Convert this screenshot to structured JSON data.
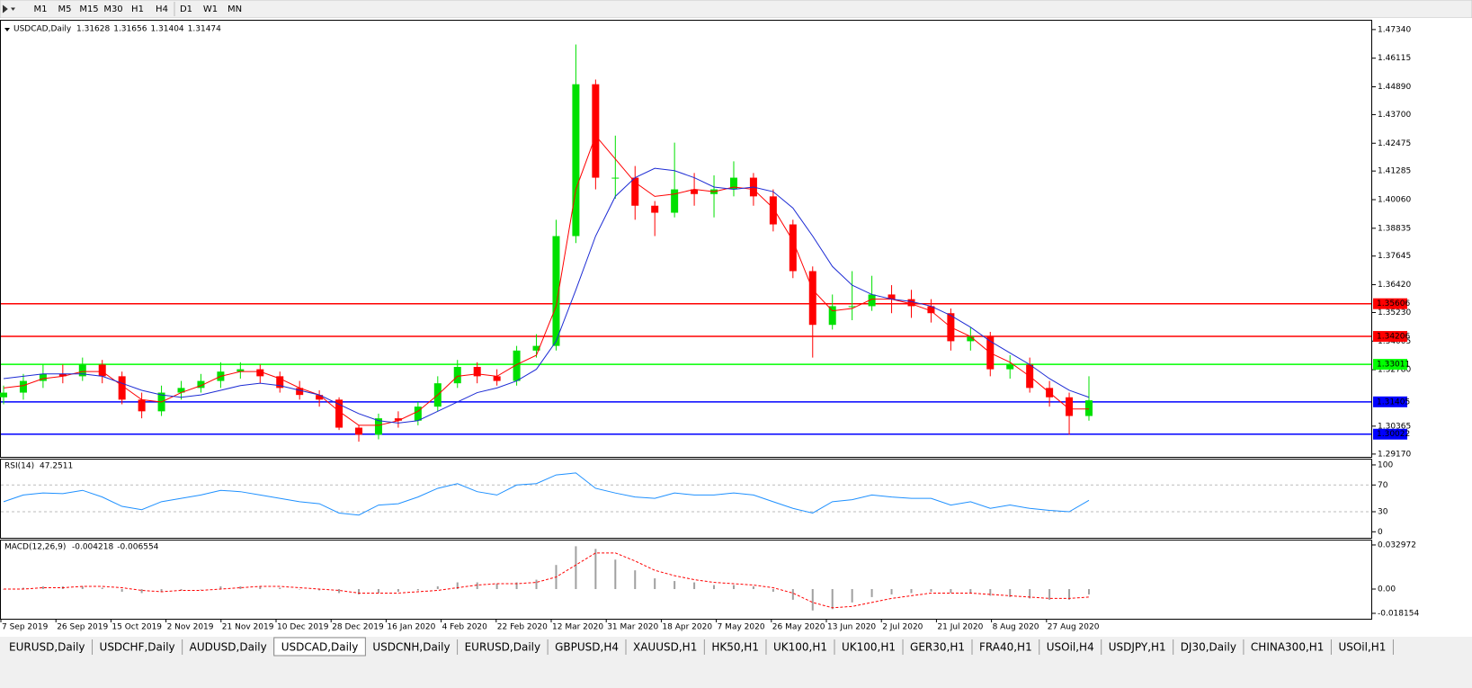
{
  "timeframes": [
    "M1",
    "M5",
    "M15",
    "M30",
    "H1",
    "H4",
    "D1",
    "W1",
    "MN"
  ],
  "tabs": [
    "EURUSD,Daily",
    "USDCHF,Daily",
    "AUDUSD,Daily",
    "USDCAD,Daily",
    "USDCNH,Daily",
    "EURUSD,Daily",
    "GBPUSD,H4",
    "XAUUSD,H1",
    "HK50,H1",
    "UK100,H1",
    "UK100,H1",
    "GER30,H1",
    "FRA40,H1",
    "USOil,H4",
    "USDJPY,H1",
    "DJ30,Daily",
    "CHINA300,H1",
    "USOil,H1"
  ],
  "active_tab": 3,
  "chart_data": [
    {
      "type": "candlestick",
      "title": "USDCAD,Daily",
      "header_values": [
        1.31628,
        1.31656,
        1.31404,
        1.31474
      ],
      "x_labels": [
        "7 Sep 2019",
        "26 Sep 2019",
        "15 Oct 2019",
        "2 Nov 2019",
        "21 Nov 2019",
        "10 Dec 2019",
        "28 Dec 2019",
        "16 Jan 2020",
        "4 Feb 2020",
        "22 Feb 2020",
        "12 Mar 2020",
        "31 Mar 2020",
        "18 Apr 2020",
        "7 May 2020",
        "26 May 2020",
        "13 Jun 2020",
        "2 Jul 2020",
        "21 Jul 2020",
        "8 Aug 2020",
        "27 Aug 2020"
      ],
      "open": [
        1.316,
        1.318,
        1.323,
        1.326,
        1.325,
        1.33,
        1.325,
        1.315,
        1.31,
        1.318,
        1.32,
        1.323,
        1.327,
        1.328,
        1.325,
        1.32,
        1.317,
        1.315,
        1.303,
        1.3,
        1.307,
        1.306,
        1.312,
        1.322,
        1.329,
        1.325,
        1.323,
        1.336,
        1.338,
        1.385,
        1.45,
        1.41,
        1.41,
        1.398,
        1.395,
        1.405,
        1.403,
        1.405,
        1.41,
        1.402,
        1.39,
        1.37,
        1.347,
        1.355,
        1.355,
        1.36,
        1.358,
        1.355,
        1.352,
        1.34,
        1.342,
        1.328,
        1.33,
        1.32,
        1.316,
        1.308
      ],
      "high": [
        1.321,
        1.326,
        1.33,
        1.33,
        1.333,
        1.332,
        1.327,
        1.318,
        1.321,
        1.323,
        1.326,
        1.331,
        1.331,
        1.33,
        1.327,
        1.323,
        1.319,
        1.316,
        1.304,
        1.309,
        1.31,
        1.314,
        1.325,
        1.332,
        1.331,
        1.328,
        1.338,
        1.343,
        1.392,
        1.467,
        1.452,
        1.428,
        1.415,
        1.4,
        1.425,
        1.412,
        1.411,
        1.417,
        1.412,
        1.405,
        1.392,
        1.372,
        1.36,
        1.37,
        1.368,
        1.364,
        1.362,
        1.358,
        1.354,
        1.346,
        1.344,
        1.334,
        1.333,
        1.323,
        1.318,
        1.325
      ],
      "low": [
        1.313,
        1.315,
        1.32,
        1.322,
        1.323,
        1.322,
        1.313,
        1.307,
        1.308,
        1.315,
        1.318,
        1.32,
        1.324,
        1.322,
        1.318,
        1.315,
        1.312,
        1.302,
        1.297,
        1.298,
        1.303,
        1.304,
        1.31,
        1.32,
        1.322,
        1.321,
        1.321,
        1.333,
        1.336,
        1.382,
        1.405,
        1.401,
        1.392,
        1.385,
        1.393,
        1.398,
        1.393,
        1.402,
        1.398,
        1.387,
        1.367,
        1.333,
        1.345,
        1.349,
        1.353,
        1.352,
        1.35,
        1.348,
        1.336,
        1.336,
        1.325,
        1.324,
        1.318,
        1.312,
        1.3,
        1.306
      ],
      "close": [
        1.318,
        1.323,
        1.326,
        1.325,
        1.33,
        1.325,
        1.315,
        1.31,
        1.318,
        1.32,
        1.323,
        1.327,
        1.328,
        1.325,
        1.32,
        1.317,
        1.315,
        1.303,
        1.3,
        1.307,
        1.306,
        1.312,
        1.322,
        1.329,
        1.325,
        1.323,
        1.336,
        1.338,
        1.385,
        1.45,
        1.41,
        1.41,
        1.398,
        1.395,
        1.405,
        1.403,
        1.405,
        1.41,
        1.402,
        1.39,
        1.37,
        1.347,
        1.355,
        1.355,
        1.36,
        1.358,
        1.355,
        1.352,
        1.34,
        1.342,
        1.328,
        1.33,
        1.32,
        1.316,
        1.308,
        1.3147
      ],
      "up_color": "#00e000",
      "down_color": "#ff0000",
      "series": [
        {
          "color": "#ff0000",
          "values": [
            1.32,
            1.321,
            1.324,
            1.325,
            1.327,
            1.327,
            1.321,
            1.315,
            1.314,
            1.318,
            1.321,
            1.325,
            1.327,
            1.327,
            1.324,
            1.32,
            1.317,
            1.31,
            1.304,
            1.304,
            1.306,
            1.31,
            1.317,
            1.325,
            1.326,
            1.325,
            1.33,
            1.334,
            1.355,
            1.405,
            1.428,
            1.418,
            1.408,
            1.402,
            1.403,
            1.405,
            1.404,
            1.406,
            1.405,
            1.397,
            1.383,
            1.362,
            1.353,
            1.354,
            1.358,
            1.358,
            1.356,
            1.353,
            1.346,
            1.342,
            1.335,
            1.331,
            1.325,
            1.318,
            1.311,
            1.311
          ]
        },
        {
          "color": "#1c2bd4",
          "values": [
            1.324,
            1.325,
            1.326,
            1.326,
            1.326,
            1.325,
            1.322,
            1.319,
            1.317,
            1.316,
            1.317,
            1.319,
            1.321,
            1.322,
            1.321,
            1.319,
            1.317,
            1.313,
            1.309,
            1.306,
            1.305,
            1.306,
            1.31,
            1.314,
            1.318,
            1.32,
            1.323,
            1.328,
            1.34,
            1.362,
            1.385,
            1.402,
            1.41,
            1.414,
            1.413,
            1.41,
            1.406,
            1.405,
            1.406,
            1.404,
            1.397,
            1.385,
            1.372,
            1.364,
            1.36,
            1.358,
            1.357,
            1.355,
            1.351,
            1.346,
            1.34,
            1.335,
            1.33,
            1.324,
            1.319,
            1.316
          ]
        }
      ],
      "levels": [
        {
          "value": 1.35606,
          "label": "1.35606",
          "color": "#ff0000"
        },
        {
          "value": 1.34206,
          "label": "1.34206",
          "color": "#ff0000"
        },
        {
          "value": 1.33011,
          "label": "1.33011",
          "color": "#00ff00"
        },
        {
          "value": 1.31405,
          "label": "1.31405",
          "color": "#0000ff"
        },
        {
          "value": 1.30022,
          "label": "1.30022",
          "color": "#0000ff"
        }
      ],
      "ylim": [
        1.2905,
        1.4772
      ],
      "yticks": [
        {
          "value": 1.4734,
          "label": "1.47340"
        },
        {
          "value": 1.46115,
          "label": "1.46115"
        },
        {
          "value": 1.4489,
          "label": "1.44890"
        },
        {
          "value": 1.437,
          "label": "1.43700"
        },
        {
          "value": 1.42475,
          "label": "1.42475"
        },
        {
          "value": 1.41285,
          "label": "1.41285"
        },
        {
          "value": 1.4006,
          "label": "1.40060"
        },
        {
          "value": 1.38835,
          "label": "1.38835"
        },
        {
          "value": 1.37645,
          "label": "1.37645"
        },
        {
          "value": 1.3642,
          "label": "1.36420"
        },
        {
          "value": 1.3523,
          "label": "1.35230"
        },
        {
          "value": 1.34005,
          "label": "1.34005"
        },
        {
          "value": 1.3278,
          "label": "1.32780"
        },
        {
          "value": 1.30365,
          "label": "1.30365"
        },
        {
          "value": 1.2917,
          "label": "1.29170"
        }
      ]
    },
    {
      "type": "line",
      "title": "RSI(14)",
      "header_values": [
        47.2511
      ],
      "series": [
        {
          "color": "#1e90ff",
          "values": [
            45,
            55,
            58,
            57,
            62,
            52,
            38,
            33,
            45,
            50,
            55,
            62,
            60,
            55,
            50,
            45,
            42,
            28,
            25,
            40,
            42,
            52,
            65,
            72,
            60,
            55,
            70,
            72,
            85,
            88,
            65,
            58,
            52,
            50,
            58,
            55,
            55,
            58,
            55,
            45,
            35,
            28,
            45,
            48,
            55,
            52,
            50,
            50,
            40,
            45,
            35,
            40,
            35,
            32,
            30,
            47
          ]
        }
      ],
      "ylim": [
        -9,
        108
      ],
      "yticks": [
        100,
        70,
        30,
        0
      ],
      "dashed_levels": [
        70,
        30
      ]
    },
    {
      "type": "macd",
      "title": "MACD(12,26,9)",
      "header_values": [
        -0.004218,
        -0.006554
      ],
      "histogram": {
        "color": "#a0a0a0",
        "values": [
          0.0,
          0.001,
          0.002,
          0.002,
          0.002,
          0.001,
          -0.002,
          -0.003,
          -0.002,
          -0.001,
          0.0,
          0.002,
          0.002,
          0.002,
          0.001,
          0.0,
          -0.001,
          -0.003,
          -0.004,
          -0.003,
          -0.002,
          -0.001,
          0.002,
          0.005,
          0.005,
          0.004,
          0.005,
          0.007,
          0.018,
          0.032,
          0.03,
          0.022,
          0.014,
          0.008,
          0.006,
          0.005,
          0.003,
          0.003,
          0.002,
          -0.002,
          -0.008,
          -0.016,
          -0.015,
          -0.01,
          -0.006,
          -0.004,
          -0.003,
          -0.002,
          -0.003,
          -0.003,
          -0.005,
          -0.006,
          -0.007,
          -0.008,
          -0.008,
          -0.004
        ]
      },
      "signal": {
        "color": "#ff0000",
        "values": [
          0.0,
          0.0,
          0.001,
          0.001,
          0.002,
          0.002,
          0.001,
          -0.001,
          -0.002,
          -0.001,
          -0.001,
          0.0,
          0.001,
          0.002,
          0.002,
          0.001,
          0.0,
          -0.001,
          -0.003,
          -0.003,
          -0.003,
          -0.002,
          -0.001,
          0.001,
          0.003,
          0.004,
          0.004,
          0.005,
          0.009,
          0.018,
          0.027,
          0.027,
          0.021,
          0.014,
          0.01,
          0.007,
          0.005,
          0.004,
          0.003,
          0.001,
          -0.003,
          -0.01,
          -0.014,
          -0.013,
          -0.01,
          -0.007,
          -0.005,
          -0.003,
          -0.003,
          -0.003,
          -0.004,
          -0.005,
          -0.006,
          -0.007,
          -0.007,
          -0.006
        ]
      },
      "ylim": [
        -0.0222,
        0.0363
      ],
      "yticks": [
        0.032972,
        {
          "value": 0,
          "label": "0.00"
        },
        -0.018154
      ]
    }
  ]
}
